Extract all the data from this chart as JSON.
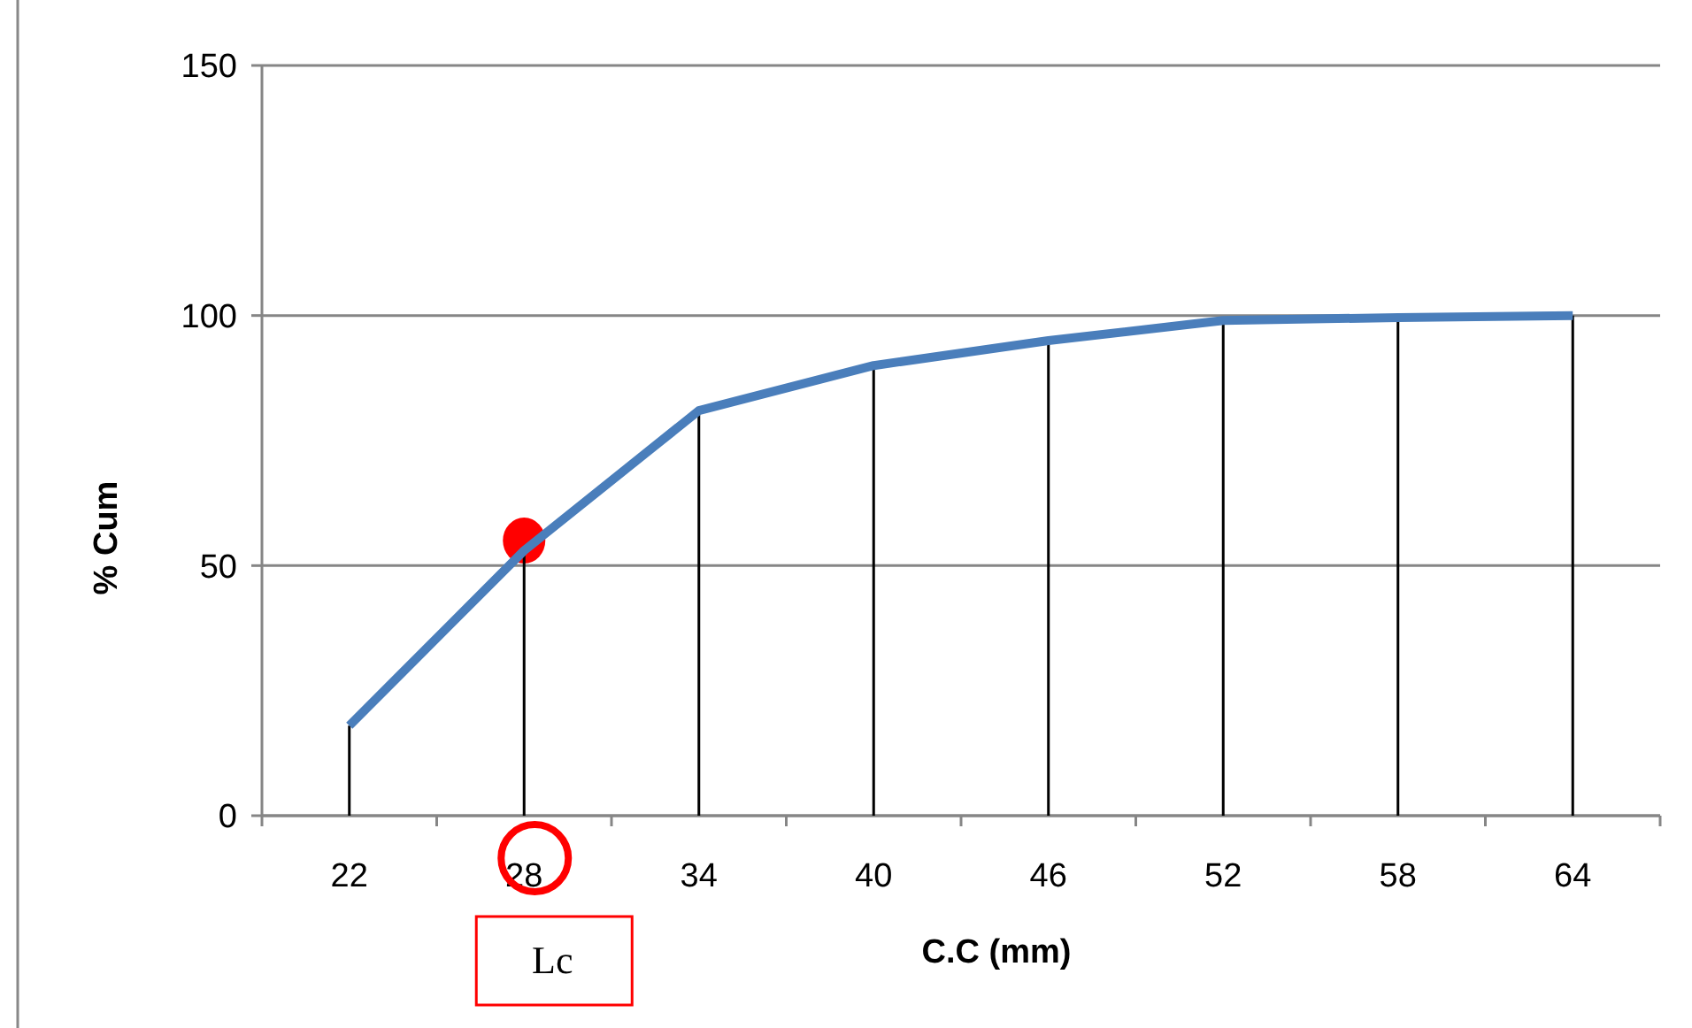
{
  "chart_data": {
    "type": "line",
    "xlabel": "C.C (mm)",
    "ylabel": "% Cum",
    "categories": [
      "22",
      "28",
      "34",
      "40",
      "46",
      "52",
      "58",
      "64"
    ],
    "series": [
      {
        "type": "scatter",
        "color": "#ff0000",
        "x": [
          "28"
        ],
        "values": [
          55
        ],
        "marker": "circle"
      },
      {
        "type": "bar",
        "color": "#000000",
        "values": [
          18,
          53,
          81,
          90,
          95,
          99,
          99.6,
          100
        ]
      },
      {
        "color": "#4a7ebb",
        "values": [
          18,
          53,
          81,
          90,
          95,
          99,
          99.6,
          100
        ]
      }
    ],
    "ylim": [
      0,
      150
    ],
    "yticks": [
      0,
      50,
      100,
      150
    ],
    "grid": "y",
    "annotations": [
      "Lc"
    ]
  }
}
